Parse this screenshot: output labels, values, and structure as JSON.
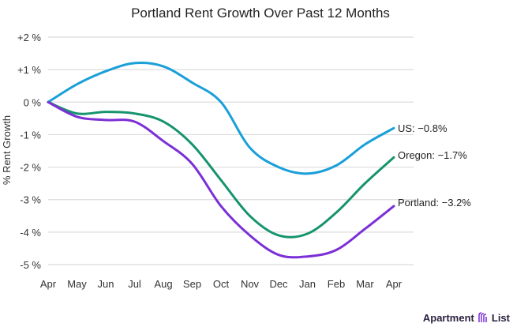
{
  "chart_data": {
    "type": "line",
    "title": "Portland Rent Growth Over Past 12 Months",
    "xlabel": "",
    "ylabel": "% Rent Growth",
    "categories": [
      "Apr",
      "May",
      "Jun",
      "Jul",
      "Aug",
      "Sep",
      "Oct",
      "Nov",
      "Dec",
      "Jan",
      "Feb",
      "Mar",
      "Apr"
    ],
    "yticks": [
      2,
      1,
      0,
      -1,
      -2,
      -3,
      -4,
      -5
    ],
    "ytick_labels": [
      "+2 %",
      "+1 %",
      "0 %",
      "-1 %",
      "-2 %",
      "-3 %",
      "-4 %",
      "-5 %"
    ],
    "ylim": [
      -5,
      2
    ],
    "grid": true,
    "series": [
      {
        "name": "US",
        "end_label": "US: −0.8%",
        "color": "#1a9fd9",
        "values": [
          0,
          0.55,
          0.95,
          1.2,
          1.1,
          0.6,
          0.0,
          -1.4,
          -2.0,
          -2.2,
          -1.95,
          -1.3,
          -0.8
        ]
      },
      {
        "name": "Oregon",
        "end_label": "Oregon: −1.7%",
        "color": "#16946e",
        "values": [
          0,
          -0.35,
          -0.3,
          -0.35,
          -0.6,
          -1.3,
          -2.4,
          -3.5,
          -4.1,
          -4.05,
          -3.4,
          -2.5,
          -1.7
        ]
      },
      {
        "name": "Portland",
        "end_label": "Portland: −3.2%",
        "color": "#7b2fd6",
        "values": [
          0,
          -0.45,
          -0.55,
          -0.6,
          -1.2,
          -1.9,
          -3.2,
          -4.1,
          -4.7,
          -4.75,
          -4.55,
          -3.9,
          -3.2
        ]
      }
    ]
  },
  "logo": {
    "text_left": "Apartment",
    "text_right": "List"
  }
}
